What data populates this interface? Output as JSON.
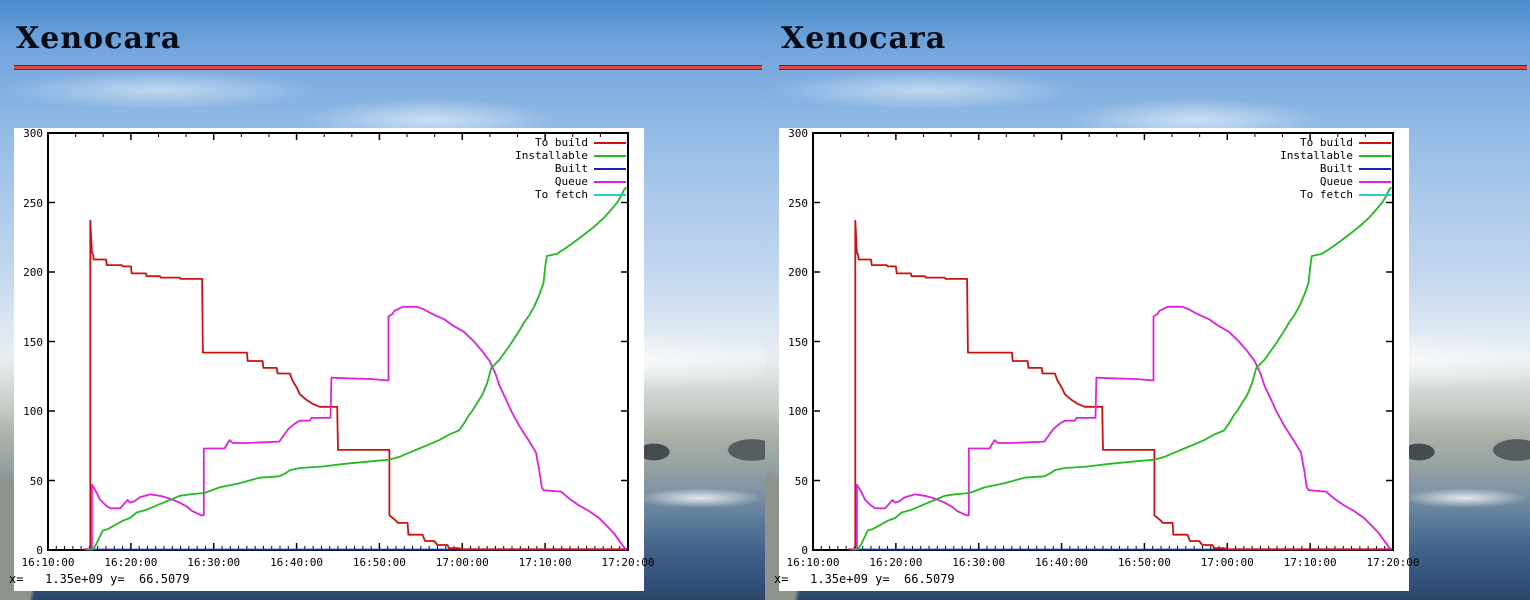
{
  "columns": [
    {
      "title": "Xenocara"
    },
    {
      "title": "Xenocara"
    }
  ],
  "status_readout": {
    "x_label": "x=",
    "x_value": "1.35e+09",
    "y_label": "y=",
    "y_value": "66.5079"
  },
  "colors": {
    "to_build": "#cc1111",
    "installable": "#22bb22",
    "built": "#2222aa",
    "queue": "#dd22dd",
    "to_fetch": "#22cccc",
    "rule_red": "#e04343",
    "plot_background": "#ffffff",
    "axis": "#000000"
  },
  "chart_data": {
    "type": "line",
    "title": "",
    "xlabel": "",
    "ylabel": "",
    "grid": false,
    "legend_position": "top-right",
    "x_axis": {
      "unit": "time",
      "start_min": 0,
      "end_min": 70,
      "major_step_min": 10,
      "minor_step_min": 1,
      "labels": [
        "16:10:00",
        "16:20:00",
        "16:30:00",
        "16:40:00",
        "16:50:00",
        "17:00:00",
        "17:10:00",
        "17:20:00"
      ]
    },
    "y_axis": {
      "min": 0,
      "max": 300,
      "step": 50,
      "ticks": [
        0,
        50,
        100,
        150,
        200,
        250,
        300
      ]
    },
    "draw_order": [
      "To fetch",
      "Built",
      "To build",
      "Queue",
      "Installable"
    ],
    "series": [
      {
        "name": "To build",
        "color": "#cc1111",
        "points": [
          [
            4.3,
            0.5
          ],
          [
            5.1,
            0.5
          ],
          [
            5.1,
            237
          ],
          [
            5.3,
            214
          ],
          [
            5.45,
            212
          ],
          [
            5.5,
            209
          ],
          [
            7.0,
            209
          ],
          [
            7.1,
            205
          ],
          [
            8.9,
            205
          ],
          [
            9.0,
            204
          ],
          [
            10.0,
            204
          ],
          [
            10.1,
            199
          ],
          [
            11.8,
            199
          ],
          [
            11.9,
            197
          ],
          [
            13.5,
            197
          ],
          [
            13.6,
            196
          ],
          [
            15.9,
            196
          ],
          [
            16.0,
            195
          ],
          [
            18.6,
            195
          ],
          [
            18.7,
            142
          ],
          [
            24.0,
            142
          ],
          [
            24.1,
            136
          ],
          [
            25.9,
            136
          ],
          [
            26.0,
            131
          ],
          [
            27.6,
            131
          ],
          [
            27.7,
            127
          ],
          [
            29.2,
            127
          ],
          [
            29.5,
            122
          ],
          [
            30.0,
            117
          ],
          [
            30.4,
            112
          ],
          [
            31.2,
            108
          ],
          [
            32.0,
            105
          ],
          [
            32.8,
            103
          ],
          [
            34.9,
            103
          ],
          [
            35.0,
            72
          ],
          [
            41.2,
            72
          ],
          [
            41.2,
            25
          ],
          [
            42.0,
            21
          ],
          [
            42.2,
            19.5
          ],
          [
            43.4,
            19.5
          ],
          [
            43.5,
            11
          ],
          [
            45.2,
            11
          ],
          [
            45.5,
            6.5
          ],
          [
            46.6,
            6.5
          ],
          [
            47.0,
            3.6
          ],
          [
            48.2,
            3.6
          ],
          [
            48.4,
            1.4
          ],
          [
            49.6,
            1.4
          ],
          [
            49.9,
            0.5
          ],
          [
            69.9,
            0.5
          ]
        ]
      },
      {
        "name": "Installable",
        "color": "#22bb22",
        "points": [
          [
            4.8,
            0.5
          ],
          [
            5.4,
            0.5
          ],
          [
            5.8,
            4
          ],
          [
            6.2,
            9
          ],
          [
            6.6,
            14
          ],
          [
            7.2,
            15
          ],
          [
            7.8,
            17
          ],
          [
            8.4,
            19
          ],
          [
            9.0,
            21
          ],
          [
            9.9,
            23
          ],
          [
            10.7,
            27
          ],
          [
            11.9,
            29
          ],
          [
            12.7,
            31
          ],
          [
            13.5,
            33
          ],
          [
            14.7,
            36
          ],
          [
            15.9,
            39
          ],
          [
            17.1,
            40
          ],
          [
            18.9,
            41
          ],
          [
            20.7,
            45
          ],
          [
            23.1,
            48
          ],
          [
            25.5,
            52
          ],
          [
            27.9,
            53
          ],
          [
            28.6,
            55
          ],
          [
            29.2,
            57.5
          ],
          [
            30.4,
            59
          ],
          [
            33.0,
            60
          ],
          [
            35.8,
            62
          ],
          [
            38.5,
            63.5
          ],
          [
            41.2,
            65
          ],
          [
            42.4,
            67
          ],
          [
            43.6,
            70
          ],
          [
            44.8,
            73
          ],
          [
            46.0,
            76
          ],
          [
            47.2,
            79
          ],
          [
            48.4,
            83
          ],
          [
            49.6,
            86
          ],
          [
            50.2,
            91
          ],
          [
            50.8,
            97
          ],
          [
            51.2,
            100
          ],
          [
            51.8,
            106
          ],
          [
            52.4,
            111.5
          ],
          [
            53.0,
            120
          ],
          [
            53.5,
            131
          ],
          [
            54.5,
            137
          ],
          [
            55.1,
            142
          ],
          [
            55.7,
            147
          ],
          [
            56.3,
            152.5
          ],
          [
            56.9,
            158
          ],
          [
            57.5,
            164
          ],
          [
            58.1,
            169
          ],
          [
            58.7,
            175.5
          ],
          [
            59.3,
            183.5
          ],
          [
            59.8,
            192
          ],
          [
            60.0,
            203
          ],
          [
            60.2,
            211.5
          ],
          [
            61.4,
            213
          ],
          [
            62.3,
            216.5
          ],
          [
            63.5,
            221.5
          ],
          [
            64.7,
            227
          ],
          [
            65.9,
            232.5
          ],
          [
            67.1,
            239
          ],
          [
            68.0,
            245
          ],
          [
            68.7,
            250
          ],
          [
            69.2,
            255
          ],
          [
            69.5,
            259
          ],
          [
            69.8,
            261
          ]
        ]
      },
      {
        "name": "Built",
        "color": "#2222aa",
        "points": [
          [
            4.5,
            0.3
          ],
          [
            69.9,
            0.3
          ]
        ]
      },
      {
        "name": "Queue",
        "color": "#dd22dd",
        "points": [
          [
            4.5,
            0.5
          ],
          [
            5.3,
            0.5
          ],
          [
            5.3,
            47
          ],
          [
            5.8,
            42
          ],
          [
            6.3,
            36
          ],
          [
            7.0,
            32
          ],
          [
            7.5,
            30
          ],
          [
            8.7,
            30
          ],
          [
            9.3,
            34
          ],
          [
            9.6,
            36
          ],
          [
            9.9,
            34
          ],
          [
            10.4,
            35
          ],
          [
            11.1,
            38
          ],
          [
            12.3,
            40
          ],
          [
            13.5,
            39
          ],
          [
            14.7,
            37
          ],
          [
            15.9,
            34
          ],
          [
            16.8,
            31
          ],
          [
            17.4,
            28
          ],
          [
            18.5,
            25
          ],
          [
            18.8,
            25
          ],
          [
            18.8,
            73
          ],
          [
            21.3,
            73
          ],
          [
            21.7,
            77
          ],
          [
            21.9,
            79
          ],
          [
            22.3,
            77
          ],
          [
            24.0,
            77
          ],
          [
            26.0,
            77.5
          ],
          [
            27.9,
            78
          ],
          [
            28.4,
            82
          ],
          [
            29.0,
            87
          ],
          [
            29.8,
            91
          ],
          [
            30.4,
            93
          ],
          [
            31.6,
            93
          ],
          [
            31.8,
            95
          ],
          [
            34.1,
            95
          ],
          [
            34.2,
            124
          ],
          [
            36.0,
            123.5
          ],
          [
            39.0,
            123
          ],
          [
            40.9,
            122
          ],
          [
            41.1,
            122
          ],
          [
            41.1,
            168
          ],
          [
            41.6,
            170
          ],
          [
            41.8,
            172
          ],
          [
            42.8,
            175
          ],
          [
            44.6,
            175
          ],
          [
            45.4,
            173
          ],
          [
            46.3,
            170
          ],
          [
            47.8,
            166
          ],
          [
            49.0,
            161
          ],
          [
            50.2,
            157
          ],
          [
            51.4,
            150
          ],
          [
            52.4,
            143
          ],
          [
            53.3,
            136
          ],
          [
            54.0,
            127
          ],
          [
            54.5,
            118
          ],
          [
            55.3,
            108
          ],
          [
            55.9,
            100
          ],
          [
            56.9,
            89
          ],
          [
            58.1,
            78
          ],
          [
            58.9,
            70
          ],
          [
            59.3,
            57
          ],
          [
            59.6,
            45
          ],
          [
            59.8,
            43
          ],
          [
            61.9,
            42
          ],
          [
            62.9,
            37
          ],
          [
            64.1,
            32
          ],
          [
            65.3,
            28
          ],
          [
            66.5,
            23
          ],
          [
            67.5,
            17
          ],
          [
            68.3,
            12
          ],
          [
            68.9,
            7
          ],
          [
            69.5,
            2
          ],
          [
            69.8,
            0.5
          ]
        ]
      },
      {
        "name": "To fetch",
        "color": "#22cccc",
        "points": [
          [
            4.5,
            0.3
          ],
          [
            69.9,
            0.3
          ]
        ]
      }
    ]
  }
}
